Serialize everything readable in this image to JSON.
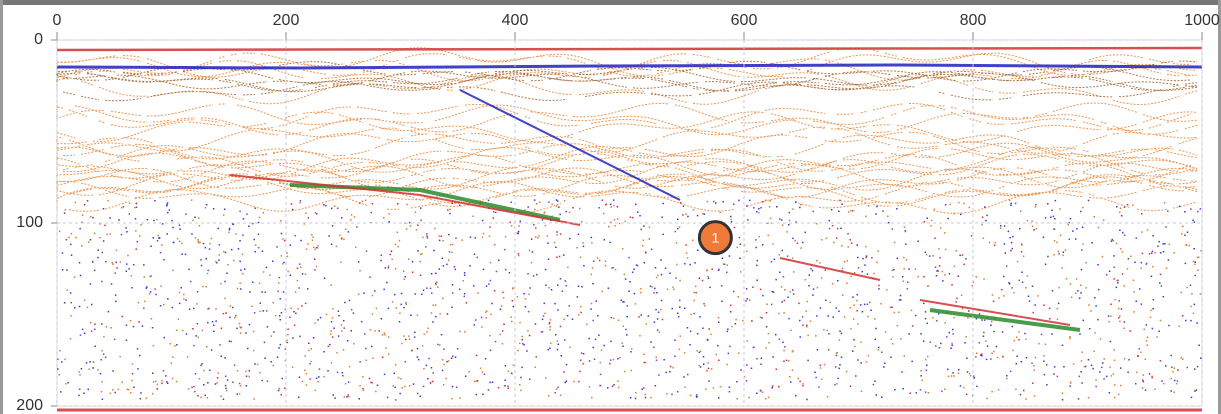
{
  "chart_data": {
    "type": "radargram",
    "xlim": [
      0,
      1000
    ],
    "xticks": [
      0,
      200,
      400,
      600,
      800,
      1000
    ],
    "ylim": [
      0,
      200
    ],
    "yticks": [
      0,
      100,
      200
    ],
    "grid": true,
    "annotations": [
      {
        "label": "1",
        "x": 575,
        "y": 108,
        "color": "#f07a3a"
      }
    ]
  }
}
